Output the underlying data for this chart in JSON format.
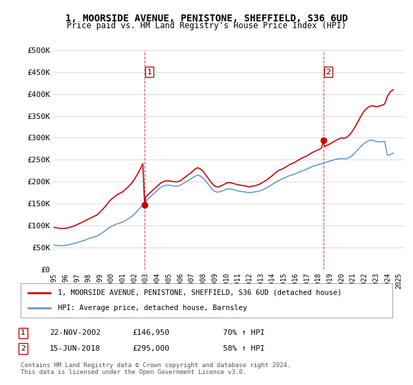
{
  "title": "1, MOORSIDE AVENUE, PENISTONE, SHEFFIELD, S36 6UD",
  "subtitle": "Price paid vs. HM Land Registry's House Price Index (HPI)",
  "ylabel_ticks": [
    "£0",
    "£50K",
    "£100K",
    "£150K",
    "£200K",
    "£250K",
    "£300K",
    "£350K",
    "£400K",
    "£450K",
    "£500K"
  ],
  "ytick_values": [
    0,
    50000,
    100000,
    150000,
    200000,
    250000,
    300000,
    350000,
    400000,
    450000,
    500000
  ],
  "ylim": [
    0,
    500000
  ],
  "xlim_start": 1995.0,
  "xlim_end": 2025.5,
  "background_color": "#ffffff",
  "grid_color": "#dddddd",
  "sale1": {
    "date_num": 2002.896,
    "price": 146950,
    "label": "1",
    "date_str": "22-NOV-2002",
    "pct": "70% ↑ HPI"
  },
  "sale2": {
    "date_num": 2018.456,
    "price": 295000,
    "label": "2",
    "date_str": "15-JUN-2018",
    "pct": "58% ↑ HPI"
  },
  "legend_line1": "1, MOORSIDE AVENUE, PENISTONE, SHEFFIELD, S36 6UD (detached house)",
  "legend_line2": "HPI: Average price, detached house, Barnsley",
  "red_line_color": "#cc0000",
  "blue_line_color": "#6699cc",
  "footer": "Contains HM Land Registry data © Crown copyright and database right 2024.\nThis data is licensed under the Open Government Licence v3.0.",
  "table_rows": [
    {
      "num": "1",
      "date": "22-NOV-2002",
      "price": "£146,950",
      "pct": "70% ↑ HPI"
    },
    {
      "num": "2",
      "date": "15-JUN-2018",
      "price": "£295,000",
      "pct": "58% ↑ HPI"
    }
  ],
  "hpi_data": {
    "years": [
      1995.0,
      1995.25,
      1995.5,
      1995.75,
      1996.0,
      1996.25,
      1996.5,
      1996.75,
      1997.0,
      1997.25,
      1997.5,
      1997.75,
      1998.0,
      1998.25,
      1998.5,
      1998.75,
      1999.0,
      1999.25,
      1999.5,
      1999.75,
      2000.0,
      2000.25,
      2000.5,
      2000.75,
      2001.0,
      2001.25,
      2001.5,
      2001.75,
      2002.0,
      2002.25,
      2002.5,
      2002.75,
      2003.0,
      2003.25,
      2003.5,
      2003.75,
      2004.0,
      2004.25,
      2004.5,
      2004.75,
      2005.0,
      2005.25,
      2005.5,
      2005.75,
      2006.0,
      2006.25,
      2006.5,
      2006.75,
      2007.0,
      2007.25,
      2007.5,
      2007.75,
      2008.0,
      2008.25,
      2008.5,
      2008.75,
      2009.0,
      2009.25,
      2009.5,
      2009.75,
      2010.0,
      2010.25,
      2010.5,
      2010.75,
      2011.0,
      2011.25,
      2011.5,
      2011.75,
      2012.0,
      2012.25,
      2012.5,
      2012.75,
      2013.0,
      2013.25,
      2013.5,
      2013.75,
      2014.0,
      2014.25,
      2014.5,
      2014.75,
      2015.0,
      2015.25,
      2015.5,
      2015.75,
      2016.0,
      2016.25,
      2016.5,
      2016.75,
      2017.0,
      2017.25,
      2017.5,
      2017.75,
      2018.0,
      2018.25,
      2018.5,
      2018.75,
      2019.0,
      2019.25,
      2019.5,
      2019.75,
      2020.0,
      2020.25,
      2020.5,
      2020.75,
      2021.0,
      2021.25,
      2021.5,
      2021.75,
      2022.0,
      2022.25,
      2022.5,
      2022.75,
      2023.0,
      2023.25,
      2023.5,
      2023.75,
      2024.0,
      2024.25,
      2024.5
    ],
    "values": [
      56000,
      55000,
      54500,
      54000,
      55000,
      56000,
      57500,
      59000,
      61000,
      63000,
      65000,
      67000,
      70000,
      72000,
      74000,
      76000,
      80000,
      84000,
      89000,
      94000,
      98000,
      101000,
      104000,
      106000,
      108000,
      112000,
      116000,
      120000,
      126000,
      133000,
      140000,
      148000,
      155000,
      162000,
      168000,
      174000,
      180000,
      186000,
      190000,
      192000,
      192000,
      191000,
      190000,
      190000,
      192000,
      196000,
      200000,
      204000,
      208000,
      212000,
      215000,
      213000,
      208000,
      200000,
      192000,
      183000,
      178000,
      176000,
      178000,
      180000,
      183000,
      184000,
      183000,
      181000,
      179000,
      178000,
      177000,
      176000,
      175000,
      176000,
      177000,
      178000,
      180000,
      183000,
      186000,
      190000,
      194000,
      198000,
      202000,
      205000,
      208000,
      211000,
      214000,
      216000,
      218000,
      221000,
      224000,
      226000,
      229000,
      232000,
      235000,
      237000,
      239000,
      241000,
      243000,
      245000,
      247000,
      249000,
      251000,
      252000,
      253000,
      252000,
      253000,
      256000,
      261000,
      268000,
      275000,
      282000,
      288000,
      292000,
      295000,
      294000,
      292000,
      291000,
      291000,
      292000,
      260000,
      262000,
      265000
    ]
  },
  "property_data": {
    "years": [
      1995.0,
      1995.25,
      1995.5,
      1995.75,
      1996.0,
      1996.25,
      1996.5,
      1996.75,
      1997.0,
      1997.25,
      1997.5,
      1997.75,
      1998.0,
      1998.25,
      1998.5,
      1998.75,
      1999.0,
      1999.25,
      1999.5,
      1999.75,
      2000.0,
      2000.25,
      2000.5,
      2000.75,
      2001.0,
      2001.25,
      2001.5,
      2001.75,
      2002.0,
      2002.25,
      2002.5,
      2002.75,
      2002.896,
      2003.0,
      2003.25,
      2003.5,
      2003.75,
      2004.0,
      2004.25,
      2004.5,
      2004.75,
      2005.0,
      2005.25,
      2005.5,
      2005.75,
      2006.0,
      2006.25,
      2006.5,
      2006.75,
      2007.0,
      2007.25,
      2007.5,
      2007.75,
      2008.0,
      2008.25,
      2008.5,
      2008.75,
      2009.0,
      2009.25,
      2009.5,
      2009.75,
      2010.0,
      2010.25,
      2010.5,
      2010.75,
      2011.0,
      2011.25,
      2011.5,
      2011.75,
      2012.0,
      2012.25,
      2012.5,
      2012.75,
      2013.0,
      2013.25,
      2013.5,
      2013.75,
      2014.0,
      2014.25,
      2014.5,
      2014.75,
      2015.0,
      2015.25,
      2015.5,
      2015.75,
      2016.0,
      2016.25,
      2016.5,
      2016.75,
      2017.0,
      2017.25,
      2017.5,
      2017.75,
      2018.0,
      2018.25,
      2018.456,
      2018.5,
      2018.75,
      2019.0,
      2019.25,
      2019.5,
      2019.75,
      2020.0,
      2020.25,
      2020.5,
      2020.75,
      2021.0,
      2021.25,
      2021.5,
      2021.75,
      2022.0,
      2022.25,
      2022.5,
      2022.75,
      2023.0,
      2023.25,
      2023.5,
      2023.75,
      2024.0,
      2024.25,
      2024.5
    ],
    "values": [
      96000,
      95000,
      94000,
      93500,
      94000,
      95000,
      97000,
      99000,
      102000,
      105000,
      108000,
      111000,
      115000,
      118000,
      121000,
      124000,
      130000,
      137000,
      144000,
      153000,
      160000,
      165000,
      170000,
      174000,
      177000,
      183000,
      189000,
      196000,
      205000,
      216000,
      228000,
      241000,
      146950,
      165000,
      172000,
      178000,
      184000,
      190000,
      196000,
      200000,
      202000,
      202000,
      201000,
      200000,
      200000,
      202000,
      207000,
      212000,
      217000,
      222000,
      228000,
      232000,
      229000,
      223000,
      214000,
      205000,
      196000,
      190000,
      188000,
      190000,
      193000,
      197000,
      198000,
      197000,
      195000,
      193000,
      192000,
      191000,
      190000,
      188000,
      190000,
      191000,
      193000,
      196000,
      200000,
      204000,
      209000,
      214000,
      220000,
      225000,
      228000,
      231000,
      235000,
      239000,
      242000,
      245000,
      249000,
      253000,
      256000,
      259000,
      263000,
      267000,
      270000,
      273000,
      276000,
      295000,
      280000,
      283000,
      286000,
      290000,
      294000,
      297000,
      300000,
      299000,
      302000,
      308000,
      317000,
      328000,
      340000,
      352000,
      362000,
      368000,
      372000,
      373000,
      371000,
      372000,
      374000,
      377000,
      395000,
      405000,
      410000
    ]
  }
}
